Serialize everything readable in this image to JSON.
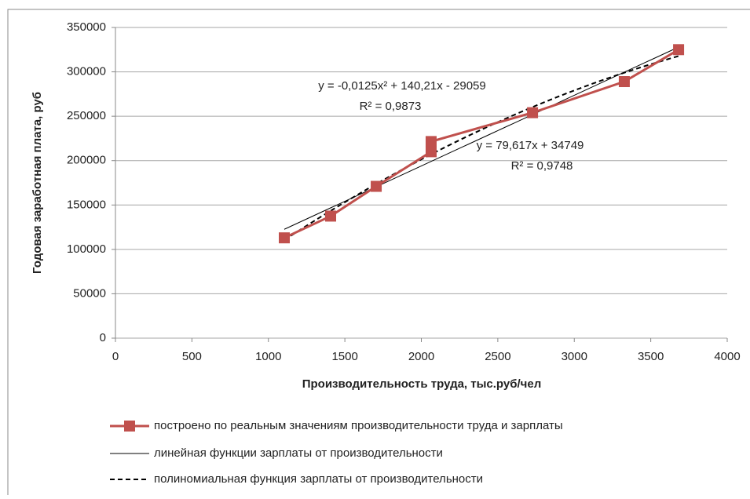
{
  "chart_data": {
    "type": "line",
    "x_label": "Производительность труда, тыс.руб/чел",
    "y_label": "Годовая заработная плата, руб",
    "xlim": [
      0,
      4000
    ],
    "xticks": [
      0,
      500,
      1000,
      1500,
      2000,
      2500,
      3000,
      3500,
      4000
    ],
    "ylim": [
      0,
      350000
    ],
    "yticks": [
      0,
      50000,
      100000,
      150000,
      200000,
      250000,
      300000,
      350000
    ],
    "grid": true,
    "legend": "bottom",
    "series": [
      {
        "name": "построено по реальным значениям производительности труда и зарплаты",
        "color": "#c0504d",
        "x": [
          1104,
          1407,
          1705,
          2064,
          2064,
          2727,
          3327,
          3682
        ],
        "values": [
          113000,
          137500,
          171000,
          210000,
          221500,
          254000,
          289000,
          325000
        ]
      }
    ],
    "trendlines": [
      {
        "name": "линейная функции зарплаты от производительности",
        "kind": "linear",
        "color": "#000000",
        "dash": false,
        "coefficients": [
          79.617,
          34749
        ],
        "equation": "y = 79,617x + 34749",
        "r2": "R² = 0,9748"
      },
      {
        "name": "полиномиальная функция зарплаты от производительности",
        "kind": "poly2",
        "color": "#000000",
        "dash": true,
        "coefficients": [
          -0.0125,
          140.21,
          -29059
        ],
        "equation": "y = -0,0125x² + 140,21x - 29059",
        "r2": "R² = 0,9873"
      }
    ]
  }
}
